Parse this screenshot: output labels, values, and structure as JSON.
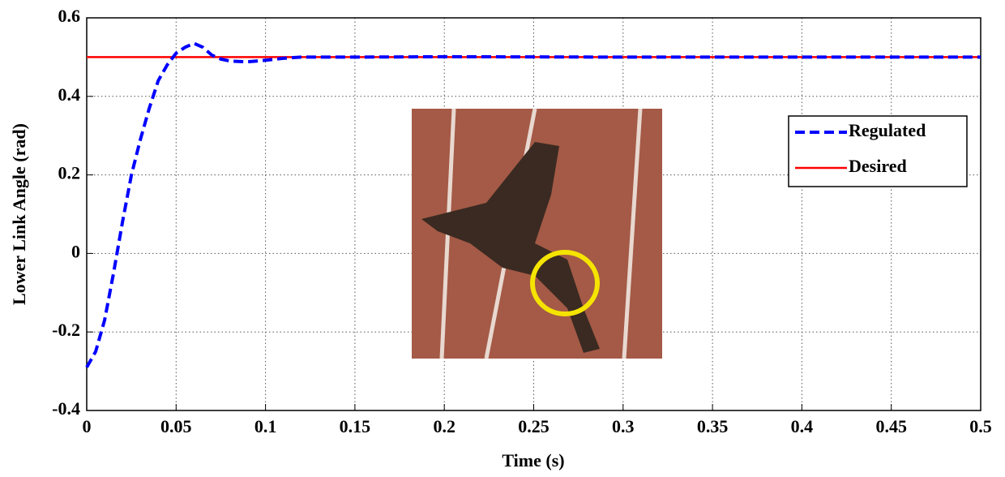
{
  "chart_data": {
    "type": "line",
    "x_label": "Time (s)",
    "y_label": "Lower Link Angle (rad)",
    "x": [
      0,
      0.005,
      0.01,
      0.015,
      0.02,
      0.025,
      0.03,
      0.035,
      0.04,
      0.045,
      0.05,
      0.055,
      0.06,
      0.065,
      0.07,
      0.075,
      0.08,
      0.09,
      0.1,
      0.11,
      0.12,
      0.15,
      0.2,
      0.3,
      0.5
    ],
    "series": [
      {
        "name": "Regulated",
        "color": "#0000ff",
        "dashed": true,
        "values": [
          -0.29,
          -0.25,
          -0.17,
          -0.05,
          0.08,
          0.2,
          0.29,
          0.37,
          0.44,
          0.48,
          0.51,
          0.525,
          0.535,
          0.525,
          0.505,
          0.495,
          0.49,
          0.488,
          0.492,
          0.497,
          0.5,
          0.5,
          0.501,
          0.5,
          0.5
        ]
      },
      {
        "name": "Desired",
        "color": "#ff0000",
        "dashed": false,
        "values": [
          0.5,
          0.5,
          0.5,
          0.5,
          0.5,
          0.5,
          0.5,
          0.5,
          0.5,
          0.5,
          0.5,
          0.5,
          0.5,
          0.5,
          0.5,
          0.5,
          0.5,
          0.5,
          0.5,
          0.5,
          0.5,
          0.5,
          0.5,
          0.5,
          0.5
        ]
      }
    ],
    "xlim": [
      0,
      0.5
    ],
    "xticks": [
      0,
      0.05,
      0.1,
      0.15,
      0.2,
      0.25,
      0.3,
      0.35,
      0.4,
      0.45,
      0.5
    ],
    "ylim": [
      -0.4,
      0.6
    ],
    "yticks": [
      -0.4,
      -0.2,
      0,
      0.2,
      0.4,
      0.6
    ],
    "grid": true,
    "legend": "right"
  }
}
